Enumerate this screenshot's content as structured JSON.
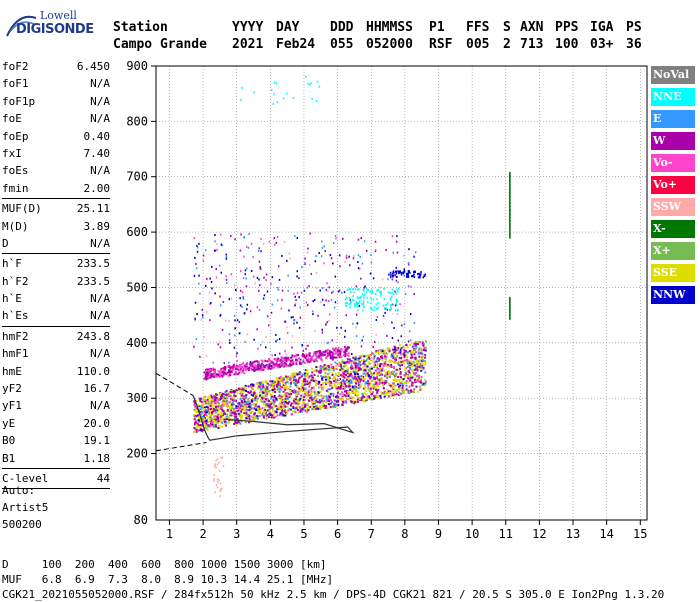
{
  "logo": {
    "line1": "Lowell",
    "line2": "DIGISONDE"
  },
  "header": {
    "labels": [
      "Station",
      "YYYY",
      "DAY",
      "DDD",
      "HHMMSS",
      "P1",
      "FFS",
      "S",
      "AXN",
      "PPS",
      "IGA",
      "PS"
    ],
    "values": [
      "Campo Grande",
      "2021",
      "Feb24",
      "055",
      "052000",
      "RSF",
      "005",
      "2",
      "713",
      "100",
      "03+",
      "36"
    ]
  },
  "params": [
    {
      "k": "foF2",
      "v": "6.450"
    },
    {
      "k": "foF1",
      "v": "N/A"
    },
    {
      "k": "foF1p",
      "v": "N/A"
    },
    {
      "k": "foE",
      "v": "N/A"
    },
    {
      "k": "foEp",
      "v": "0.40"
    },
    {
      "k": "fxI",
      "v": "7.40"
    },
    {
      "k": "foEs",
      "v": "N/A"
    },
    {
      "k": "fmin",
      "v": "2.00"
    },
    {
      "div": true
    },
    {
      "k": "MUF(D)",
      "v": "25.11"
    },
    {
      "k": "M(D)",
      "v": "3.89"
    },
    {
      "k": "D",
      "v": "N/A"
    },
    {
      "div": true
    },
    {
      "k": "h`F",
      "v": "233.5"
    },
    {
      "k": "h`F2",
      "v": "233.5"
    },
    {
      "k": "h`E",
      "v": "N/A"
    },
    {
      "k": "h`Es",
      "v": "N/A"
    },
    {
      "div": true
    },
    {
      "k": "hmF2",
      "v": "243.8"
    },
    {
      "k": "hmF1",
      "v": "N/A"
    },
    {
      "k": "hmE",
      "v": "110.0"
    },
    {
      "k": "yF2",
      "v": "16.7"
    },
    {
      "k": "yF1",
      "v": "N/A"
    },
    {
      "k": "yE",
      "v": "20.0"
    },
    {
      "k": "B0",
      "v": "19.1"
    },
    {
      "k": "B1",
      "v": "1.18"
    },
    {
      "div": true
    },
    {
      "k": "C-level",
      "v": "44"
    },
    {
      "div": true
    }
  ],
  "auto": {
    "line1": "Auto:",
    "line2": "Artist5",
    "line3": "500200"
  },
  "legend": [
    {
      "label": "NoVal",
      "color": "#808080"
    },
    {
      "label": "NNE",
      "color": "#00ffff"
    },
    {
      "label": "E",
      "color": "#3399ff"
    },
    {
      "label": "W",
      "color": "#aa00aa"
    },
    {
      "label": "Vo-",
      "color": "#ff44cc"
    },
    {
      "label": "Vo+",
      "color": "#ff0044"
    },
    {
      "label": "SSW",
      "color": "#ffaaaa"
    },
    {
      "label": "X-",
      "color": "#007700"
    },
    {
      "label": "X+",
      "color": "#77bb55"
    },
    {
      "label": "SSE",
      "color": "#dddd00"
    },
    {
      "label": "NNW",
      "color": "#0000cc"
    }
  ],
  "chart_data": {
    "type": "scatter",
    "xlabel": "",
    "ylabel": "",
    "xlim": [
      0.6,
      15.2
    ],
    "ylim": [
      80,
      900
    ],
    "xticks": [
      1,
      2,
      3,
      4,
      5,
      6,
      7,
      8,
      9,
      10,
      11,
      12,
      13,
      14,
      15
    ],
    "yticks": [
      200,
      300,
      400,
      500,
      600,
      700,
      800,
      900
    ],
    "ytick_extra": [
      80
    ],
    "grid": "dotted"
  },
  "bottom": {
    "line1": "D     100  200  400  600  800 1000 1500 3000 [km]",
    "line2": "MUF   6.8  6.9  7.3  8.0  8.9 10.3 14.4 25.1 [MHz]",
    "line3": "CGK21_2021055052000.RSF / 284fx512h 50 kHz 2.5 km / DPS-4D CGK21 821 / 20.5 S 305.0 E Ion2Png 1.3.20"
  }
}
